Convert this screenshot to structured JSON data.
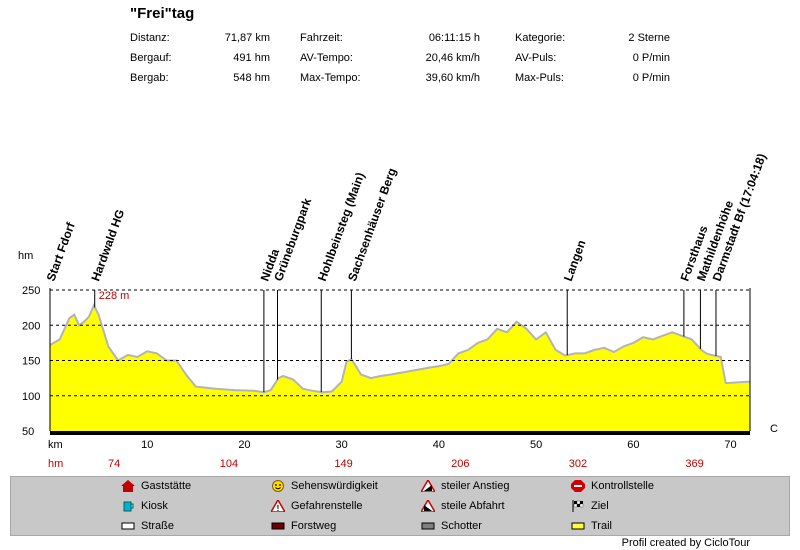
{
  "title": "\"Frei\"tag",
  "stats": [
    {
      "label": "Distanz:",
      "value": "71,87 km"
    },
    {
      "label": "Bergauf:",
      "value": "491 hm"
    },
    {
      "label": "Bergab:",
      "value": "548 hm"
    },
    {
      "label": "Fahrzeit:",
      "value": "06:11:15 h"
    },
    {
      "label": "AV-Tempo:",
      "value": "20,46 km/h"
    },
    {
      "label": "Max-Tempo:",
      "value": "39,60 km/h"
    },
    {
      "label": "Kategorie:",
      "value": "2 Sterne"
    },
    {
      "label": "AV-Puls:",
      "value": "0 P/min"
    },
    {
      "label": "Max-Puls:",
      "value": "0 P/min"
    }
  ],
  "chart_data": {
    "type": "area",
    "ylabel": "hm",
    "xlabel": "km",
    "xlim": [
      0,
      72
    ],
    "ylim": [
      50,
      250
    ],
    "yticks": [
      50,
      100,
      150,
      200,
      250
    ],
    "xticks": [
      10,
      20,
      30,
      40,
      50,
      60,
      70
    ],
    "right_label": "C",
    "max_label": "228 m",
    "max_km": 4.6,
    "fill_color": "#ffff00",
    "line_color": "#b4b4b4",
    "series": [
      {
        "x": [
          0,
          1,
          2,
          2.5,
          3,
          3.5,
          4,
          4.5,
          5,
          6,
          7,
          8,
          9,
          10,
          11,
          12,
          13,
          14,
          15,
          17,
          19,
          21,
          22,
          22.7,
          23.5,
          24,
          25,
          26,
          27,
          28,
          29,
          30,
          30.5,
          31,
          32,
          33,
          34,
          35,
          37,
          39,
          40,
          41,
          42,
          43,
          44,
          45,
          46,
          47,
          48,
          49,
          50,
          51,
          52,
          53,
          54,
          55,
          56,
          57,
          58,
          59,
          60,
          61,
          62,
          63,
          64,
          65,
          66,
          67,
          67.5,
          68,
          69,
          69.5,
          72
        ],
        "y": [
          172,
          180,
          210,
          215,
          200,
          205,
          212,
          228,
          215,
          170,
          150,
          158,
          155,
          163,
          160,
          150,
          150,
          130,
          113,
          110,
          108,
          107,
          105,
          108,
          125,
          128,
          123,
          110,
          107,
          105,
          106,
          120,
          148,
          152,
          130,
          125,
          128,
          130,
          135,
          140,
          142,
          145,
          160,
          165,
          175,
          180,
          195,
          190,
          205,
          195,
          180,
          190,
          165,
          157,
          160,
          160,
          165,
          168,
          162,
          170,
          175,
          183,
          180,
          185,
          190,
          185,
          180,
          165,
          160,
          158,
          155,
          118,
          120
        ]
      }
    ],
    "annotations": [
      {
        "text": "Start Fdorf",
        "km": 0
      },
      {
        "text": "Hardwald HG",
        "km": 4.6
      },
      {
        "text": "Nidda",
        "km": 22
      },
      {
        "text": "Grüneburgpark",
        "km": 23.4
      },
      {
        "text": "Hohlbeinsteg (Main)",
        "km": 27.9
      },
      {
        "text": "Sachsenhäuser Berg",
        "km": 31
      },
      {
        "text": "Langen",
        "km": 53.2
      },
      {
        "text": "Forsthaus",
        "km": 65.2
      },
      {
        "text": "Mathildenhöhe",
        "km": 66.9
      },
      {
        "text": "Darmstadt Bf (17:04:18)",
        "km": 68.5
      }
    ],
    "hm_row": [
      {
        "km": 0,
        "text": "hm"
      },
      {
        "km": 6.6,
        "text": "74"
      },
      {
        "km": 18.4,
        "text": "104"
      },
      {
        "km": 30.2,
        "text": "149"
      },
      {
        "km": 42.2,
        "text": "206"
      },
      {
        "km": 54.3,
        "text": "302"
      },
      {
        "km": 66.3,
        "text": "369"
      }
    ]
  },
  "legend": [
    {
      "label": "Gaststätte",
      "icon": "house-icon"
    },
    {
      "label": "Kiosk",
      "icon": "kiosk-cup-icon"
    },
    {
      "label": "Straße",
      "icon": "road-white-swatch"
    },
    {
      "label": "Sehenswürdigkeit",
      "icon": "smiley-icon"
    },
    {
      "label": "Gefahrenstelle",
      "icon": "warning-icon"
    },
    {
      "label": "Forstweg",
      "icon": "forest-road-swatch"
    },
    {
      "label": "steiler Anstieg",
      "icon": "steep-climb-icon"
    },
    {
      "label": "steile Abfahrt",
      "icon": "steep-descent-icon"
    },
    {
      "label": "Schotter",
      "icon": "gravel-swatch"
    },
    {
      "label": "Kontrollstelle",
      "icon": "stop-icon"
    },
    {
      "label": "Ziel",
      "icon": "finish-flag-icon"
    },
    {
      "label": "Trail",
      "icon": "trail-yellow-swatch"
    }
  ],
  "credit": "Profil created by CicloTour"
}
